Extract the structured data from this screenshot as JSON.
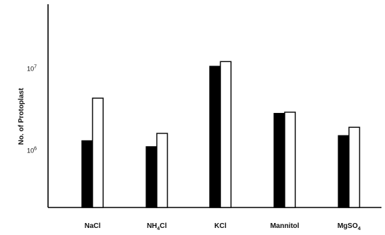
{
  "chart_data": {
    "type": "bar",
    "ylabel": "No. of Protoplast",
    "xlabel": "",
    "yscale": "log",
    "yticks": [
      {
        "value": 1000000,
        "base": "10",
        "exp": "6"
      },
      {
        "value": 10000000,
        "base": "10",
        "exp": "7"
      }
    ],
    "ylim": [
      200000,
      60000000
    ],
    "categories": [
      {
        "base": "NaCl",
        "sub": ""
      },
      {
        "base": "NH",
        "sub": "4",
        "tail": "Cl"
      },
      {
        "base": "KCl",
        "sub": ""
      },
      {
        "base": "Mannitol",
        "sub": ""
      },
      {
        "base": "MgSO",
        "sub": "4"
      }
    ],
    "series": [
      {
        "fill": "#000000",
        "values": [
          1300000,
          1100000,
          10500000,
          2800000,
          1500000
        ]
      },
      {
        "fill": "#ffffff",
        "values": [
          4300000,
          1600000,
          12000000,
          2900000,
          1900000
        ]
      }
    ]
  }
}
